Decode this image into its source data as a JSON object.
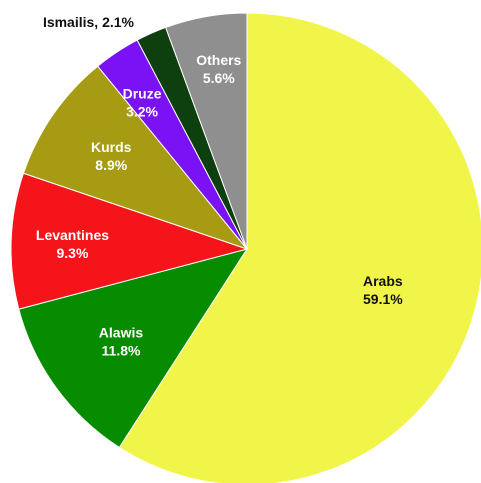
{
  "chart_data": {
    "type": "pie",
    "title": "",
    "slices": [
      {
        "label": "Arabs",
        "value": 59.1,
        "display": "59.1%",
        "color": "#f2f549",
        "text_color": "#111111"
      },
      {
        "label": "Alawis",
        "value": 11.8,
        "display": "11.8%",
        "color": "#078c00",
        "text_color": "#ffffff"
      },
      {
        "label": "Levantines",
        "value": 9.3,
        "display": "9.3%",
        "color": "#f5141a",
        "text_color": "#ffffff"
      },
      {
        "label": "Kurds",
        "value": 8.9,
        "display": "8.9%",
        "color": "#a69b12",
        "text_color": "#ffffff"
      },
      {
        "label": "Druze",
        "value": 3.2,
        "display": "3.2%",
        "color": "#7a12f5",
        "text_color": "#ffffff"
      },
      {
        "label": "Ismailis",
        "value": 2.1,
        "display": "2.1%",
        "color": "#0e3f0f",
        "text_color": "#111111",
        "external": true
      },
      {
        "label": "Others",
        "value": 5.6,
        "display": "5.6%",
        "color": "#8f8f8f",
        "text_color": "#ffffff"
      }
    ],
    "start": "12 o'clock",
    "direction": "clockwise",
    "legend": "none"
  }
}
